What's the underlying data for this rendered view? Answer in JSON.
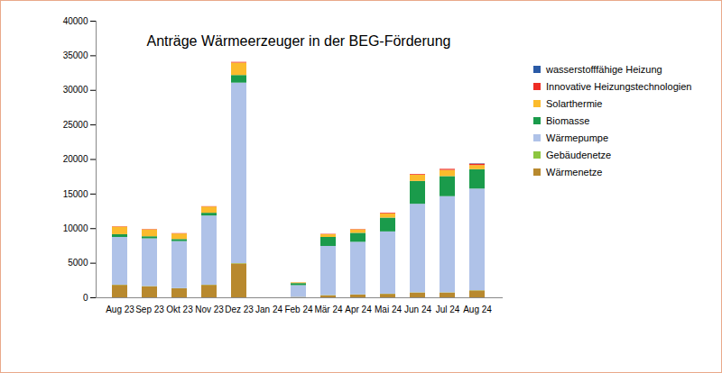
{
  "chart_data": {
    "type": "bar",
    "stacked": true,
    "title": "Anträge Wärmeerzeuger in der BEG-Förderung",
    "categories": [
      "Aug 23",
      "Sep 23",
      "Okt 23",
      "Nov 23",
      "Dez 23",
      "Jan 24",
      "Feb 24",
      "Mär 24",
      "Apr 24",
      "Mai 24",
      "Jun 24",
      "Jul 24",
      "Aug 24"
    ],
    "series": [
      {
        "name": "Wärmenetze",
        "color": "#b8892e",
        "values": [
          1800,
          1600,
          1300,
          1800,
          4900,
          0,
          50,
          300,
          400,
          500,
          700,
          700,
          1000
        ]
      },
      {
        "name": "Gebäudenetze",
        "color": "#8cc63f",
        "values": [
          30,
          30,
          30,
          30,
          50,
          0,
          10,
          30,
          30,
          30,
          30,
          30,
          30
        ]
      },
      {
        "name": "Wärmepumpe",
        "color": "#afc2e8",
        "values": [
          6900,
          6900,
          6800,
          10000,
          26100,
          0,
          1700,
          7100,
          7600,
          9000,
          12800,
          13900,
          14700
        ]
      },
      {
        "name": "Biomasse",
        "color": "#1a9b4b",
        "values": [
          400,
          300,
          300,
          400,
          1100,
          0,
          300,
          1300,
          1300,
          2000,
          3300,
          2900,
          2800
        ]
      },
      {
        "name": "Solarthermie",
        "color": "#fbbb2c",
        "values": [
          1100,
          1000,
          800,
          900,
          1800,
          0,
          100,
          400,
          500,
          600,
          900,
          900,
          600
        ]
      },
      {
        "name": "Innovative Heizungstechnologien",
        "color": "#ee2c24",
        "values": [
          50,
          50,
          50,
          50,
          100,
          0,
          10,
          50,
          50,
          100,
          100,
          150,
          200
        ]
      },
      {
        "name": "wasserstofffähige Heizung",
        "color": "#2a5aa6",
        "values": [
          0,
          0,
          0,
          0,
          0,
          0,
          0,
          0,
          0,
          0,
          0,
          0,
          50
        ]
      }
    ],
    "ylim": [
      0,
      40000
    ],
    "yticks": [
      0,
      5000,
      10000,
      15000,
      20000,
      25000,
      30000,
      35000,
      40000
    ],
    "grid": false,
    "legend": "right"
  }
}
